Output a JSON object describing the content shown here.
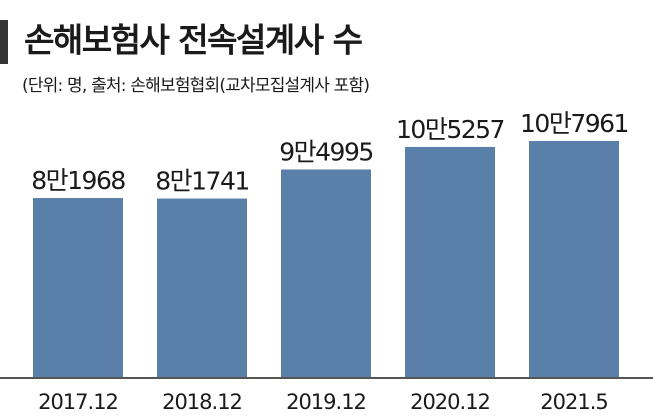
{
  "chart_data": {
    "type": "bar",
    "title": "손해보험사 전속설계사 수",
    "subtitle": "(단위: 명, 출처: 손해보험협회(교차모집설계사 포함)",
    "categories": [
      "2017.12",
      "2018.12",
      "2019.12",
      "2020.12",
      "2021.5"
    ],
    "values": [
      81968,
      81741,
      94995,
      105257,
      107961
    ],
    "value_labels": [
      "8만1968",
      "8만1741",
      "9만4995",
      "10만5257",
      "10만7961"
    ],
    "color": "#5a7fa8"
  }
}
